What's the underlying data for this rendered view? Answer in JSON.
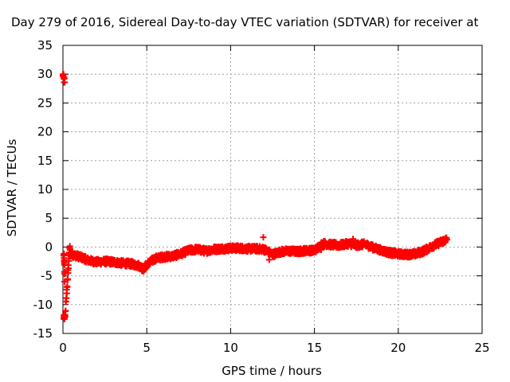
{
  "chart_data": {
    "type": "scatter",
    "title": "Day 279 of 2016, Sidereal Day-to-day VTEC variation (SDTVAR) for receiver at",
    "xlabel": "GPS time / hours",
    "ylabel": "SDTVAR / TECUs",
    "xlim": [
      0,
      25
    ],
    "ylim": [
      -15,
      35
    ],
    "x_ticks": [
      0,
      5,
      10,
      15,
      20,
      25
    ],
    "y_ticks": [
      -15,
      -10,
      -5,
      0,
      5,
      10,
      15,
      20,
      25,
      30,
      35
    ],
    "grid": true,
    "marker": "+",
    "series": [
      {
        "name": "SDTVAR",
        "color": "#ff0000",
        "trend": [
          [
            0.0,
            29.8
          ],
          [
            0.05,
            29.2
          ],
          [
            0.1,
            28.6
          ],
          [
            0.05,
            -1.5
          ],
          [
            0.08,
            -2.8
          ],
          [
            0.1,
            -6.0
          ],
          [
            0.05,
            -12.2
          ],
          [
            0.12,
            -12.0
          ],
          [
            0.4,
            -0.2
          ],
          [
            0.45,
            -1.2
          ],
          [
            1.1,
            -1.8
          ],
          [
            1.5,
            -2.3
          ],
          [
            2.0,
            -2.6
          ],
          [
            2.5,
            -2.5
          ],
          [
            3.0,
            -2.6
          ],
          [
            3.5,
            -2.8
          ],
          [
            4.0,
            -2.9
          ],
          [
            4.5,
            -3.2
          ],
          [
            4.8,
            -3.8
          ],
          [
            5.0,
            -3.0
          ],
          [
            5.5,
            -2.0
          ],
          [
            6.0,
            -1.7
          ],
          [
            6.5,
            -1.6
          ],
          [
            7.0,
            -1.2
          ],
          [
            7.5,
            -0.6
          ],
          [
            8.0,
            -0.4
          ],
          [
            8.5,
            -0.7
          ],
          [
            9.0,
            -0.4
          ],
          [
            9.5,
            -0.3
          ],
          [
            10.0,
            -0.2
          ],
          [
            10.5,
            -0.2
          ],
          [
            11.0,
            -0.3
          ],
          [
            11.5,
            -0.3
          ],
          [
            12.0,
            -0.4
          ],
          [
            12.5,
            -1.3
          ],
          [
            13.0,
            -0.8
          ],
          [
            13.5,
            -0.7
          ],
          [
            14.0,
            -0.8
          ],
          [
            14.5,
            -0.6
          ],
          [
            15.0,
            -0.6
          ],
          [
            15.5,
            0.6
          ],
          [
            16.0,
            0.4
          ],
          [
            16.5,
            0.3
          ],
          [
            17.0,
            0.6
          ],
          [
            17.5,
            0.3
          ],
          [
            18.0,
            0.5
          ],
          [
            18.5,
            -0.1
          ],
          [
            19.0,
            -0.6
          ],
          [
            19.5,
            -1.0
          ],
          [
            20.0,
            -1.2
          ],
          [
            20.5,
            -1.3
          ],
          [
            21.0,
            -1.2
          ],
          [
            21.5,
            -0.7
          ],
          [
            22.0,
            0.1
          ],
          [
            22.5,
            0.8
          ],
          [
            22.9,
            1.3
          ]
        ],
        "outliers": [
          [
            11.95,
            1.7
          ],
          [
            12.3,
            -2.2
          ],
          [
            15.4,
            -0.5
          ],
          [
            17.3,
            1.4
          ]
        ]
      }
    ]
  }
}
